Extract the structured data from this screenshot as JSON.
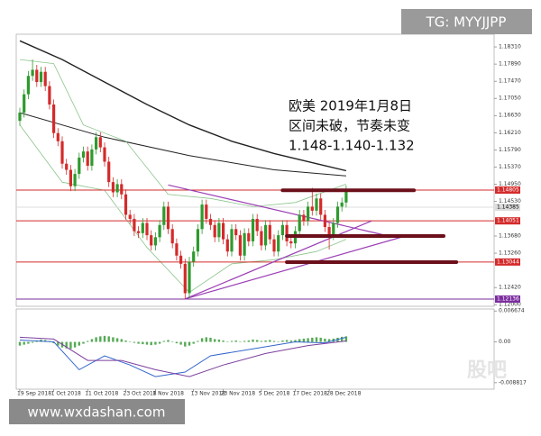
{
  "badge": "TG: MYYJJPP",
  "footer": "www.wxdashan.com",
  "watermark": "股吧",
  "chart_data": {
    "type": "candlestick",
    "categories": [
      "19 Sep 2018",
      null,
      null,
      null,
      null,
      null,
      null,
      null,
      "1 Oct 2018",
      null,
      null,
      null,
      null,
      null,
      null,
      null,
      "11 Oct 2018",
      null,
      null,
      null,
      null,
      null,
      null,
      null,
      null,
      "23 Oct 2018",
      null,
      null,
      null,
      null,
      null,
      null,
      "1 Nov 2018",
      null,
      null,
      null,
      null,
      null,
      null,
      null,
      null,
      "13 Nov 2018",
      null,
      null,
      null,
      null,
      null,
      null,
      "23 Nov 2018",
      null,
      null,
      null,
      null,
      null,
      null,
      null,
      null,
      "5 Dec 2018",
      null,
      null,
      null,
      null,
      null,
      null,
      null,
      "17 Dec 2018",
      null,
      null,
      null,
      null,
      null,
      null,
      null,
      "28 Dec 2018",
      null,
      null,
      null,
      null
    ],
    "open": [
      1.165,
      1.167,
      1.1715,
      1.176,
      1.1775,
      1.1745,
      1.177,
      1.1735,
      1.169,
      1.162,
      1.16,
      1.1545,
      1.153,
      1.149,
      1.152,
      1.156,
      1.1575,
      1.154,
      1.158,
      1.161,
      1.1585,
      1.155,
      1.15,
      1.1475,
      1.1495,
      1.147,
      1.142,
      1.141,
      1.138,
      1.1375,
      1.14,
      1.137,
      1.1345,
      1.1365,
      1.1395,
      1.144,
      1.1385,
      1.135,
      1.132,
      1.13,
      1.1228,
      1.1305,
      1.133,
      1.1385,
      1.1445,
      1.141,
      1.1395,
      1.1365,
      1.14,
      1.136,
      1.133,
      1.1385,
      1.137,
      1.132,
      1.1375,
      1.1355,
      1.141,
      1.138,
      1.1345,
      1.1395,
      1.136,
      1.133,
      1.137,
      1.1395,
      1.1355,
      1.135,
      1.138,
      1.142,
      1.1405,
      1.144,
      1.143,
      1.146,
      1.142,
      1.139,
      1.137,
      1.14,
      1.144,
      1.145
    ],
    "high": [
      1.1682,
      1.1727,
      1.1772,
      1.18,
      1.1787,
      1.1782,
      1.1782,
      1.1747,
      1.1702,
      1.1632,
      1.1612,
      1.1557,
      1.1542,
      1.1532,
      1.1572,
      1.1587,
      1.1587,
      1.1592,
      1.1622,
      1.1622,
      1.1597,
      1.1562,
      1.1512,
      1.1507,
      1.1507,
      1.1482,
      1.1432,
      1.1422,
      1.1392,
      1.1412,
      1.1412,
      1.1382,
      1.1377,
      1.1407,
      1.1452,
      1.1452,
      1.1397,
      1.1362,
      1.1332,
      1.1312,
      1.1317,
      1.1342,
      1.1397,
      1.1457,
      1.1457,
      1.1422,
      1.1407,
      1.1412,
      1.1412,
      1.1372,
      1.1397,
      1.1397,
      1.1382,
      1.1387,
      1.1387,
      1.1422,
      1.1422,
      1.1392,
      1.1407,
      1.1407,
      1.1372,
      1.1382,
      1.1407,
      1.1407,
      1.1367,
      1.1392,
      1.1432,
      1.1432,
      1.1452,
      1.1486,
      1.1472,
      1.1472,
      1.1432,
      1.1402,
      1.1412,
      1.1452,
      1.1462,
      1.1492
    ],
    "low": [
      1.1638,
      1.1658,
      1.1703,
      1.1748,
      1.1733,
      1.1733,
      1.1723,
      1.1678,
      1.1608,
      1.1588,
      1.1533,
      1.1518,
      1.1478,
      1.1478,
      1.1508,
      1.1548,
      1.1528,
      1.1528,
      1.1568,
      1.1573,
      1.1538,
      1.1488,
      1.1463,
      1.1463,
      1.1458,
      1.1408,
      1.1398,
      1.1368,
      1.1363,
      1.1363,
      1.1358,
      1.1333,
      1.1333,
      1.1353,
      1.1383,
      1.1373,
      1.1338,
      1.1308,
      1.1288,
      1.1214,
      1.1216,
      1.1293,
      1.1318,
      1.1373,
      1.1398,
      1.1383,
      1.1353,
      1.1353,
      1.1348,
      1.1318,
      1.1318,
      1.1358,
      1.1308,
      1.1308,
      1.1343,
      1.1343,
      1.1368,
      1.1333,
      1.1333,
      1.1348,
      1.1318,
      1.1318,
      1.1358,
      1.1343,
      1.1338,
      1.1338,
      1.1368,
      1.1393,
      1.1393,
      1.1418,
      1.1418,
      1.1408,
      1.1378,
      1.1335,
      1.1358,
      1.1388,
      1.1428,
      1.1438
    ],
    "close": [
      1.167,
      1.1715,
      1.176,
      1.1775,
      1.1745,
      1.177,
      1.1735,
      1.169,
      1.162,
      1.16,
      1.1545,
      1.153,
      1.149,
      1.152,
      1.156,
      1.1575,
      1.154,
      1.158,
      1.161,
      1.1585,
      1.155,
      1.15,
      1.1475,
      1.1495,
      1.147,
      1.142,
      1.141,
      1.138,
      1.1375,
      1.14,
      1.137,
      1.1345,
      1.1365,
      1.1395,
      1.144,
      1.1385,
      1.135,
      1.132,
      1.13,
      1.1228,
      1.1305,
      1.133,
      1.1385,
      1.1445,
      1.141,
      1.1395,
      1.1365,
      1.14,
      1.136,
      1.133,
      1.1385,
      1.137,
      1.132,
      1.1375,
      1.1355,
      1.141,
      1.138,
      1.1345,
      1.1395,
      1.136,
      1.133,
      1.137,
      1.1395,
      1.1355,
      1.135,
      1.138,
      1.142,
      1.1405,
      1.144,
      1.143,
      1.146,
      1.142,
      1.139,
      1.137,
      1.14,
      1.144,
      1.145,
      1.148
    ],
    "up_color": "#2e9a2e",
    "down_color": "#d42a2a",
    "ylim": [
      1.1196,
      1.1862
    ],
    "yticks": [
      {
        "value": 1.1831,
        "label": "1.18310"
      },
      {
        "value": 1.1789,
        "label": "1.17890"
      },
      {
        "value": 1.1747,
        "label": "1.17470"
      },
      {
        "value": 1.1705,
        "label": "1.17050"
      },
      {
        "value": 1.1663,
        "label": "1.16630"
      },
      {
        "value": 1.1621,
        "label": "1.16210"
      },
      {
        "value": 1.1579,
        "label": "1.15790"
      },
      {
        "value": 1.1537,
        "label": "1.15370"
      },
      {
        "value": 1.1495,
        "label": "1.14950"
      },
      {
        "value": 1.1453,
        "label": "1.14530"
      },
      {
        "value": 1.1368,
        "label": "1.13680"
      },
      {
        "value": 1.1326,
        "label": "1.13260"
      },
      {
        "value": 1.1242,
        "label": "1.12420"
      },
      {
        "value": 1.12,
        "label": "1.12000"
      }
    ],
    "overlays": [
      {
        "color": "#222222",
        "width": 1.4,
        "points": [
          [
            0,
            1.1846
          ],
          [
            10,
            1.18
          ],
          [
            20,
            1.1745
          ],
          [
            30,
            1.169
          ],
          [
            40,
            1.164
          ],
          [
            50,
            1.16
          ],
          [
            60,
            1.157
          ],
          [
            70,
            1.1545
          ],
          [
            77,
            1.1528
          ]
        ]
      },
      {
        "color": "#222222",
        "width": 1,
        "points": [
          [
            0,
            1.167
          ],
          [
            20,
            1.161
          ],
          [
            40,
            1.1565
          ],
          [
            60,
            1.153
          ],
          [
            77,
            1.1515
          ]
        ]
      },
      {
        "color": "#8cc48c",
        "width": 0.8,
        "points": [
          [
            0,
            1.18
          ],
          [
            8,
            1.179
          ],
          [
            15,
            1.164
          ],
          [
            25,
            1.16
          ],
          [
            35,
            1.147
          ],
          [
            45,
            1.146
          ],
          [
            55,
            1.144
          ],
          [
            65,
            1.145
          ],
          [
            77,
            1.1495
          ]
        ]
      },
      {
        "color": "#8cc48c",
        "width": 0.8,
        "points": [
          [
            0,
            1.164
          ],
          [
            10,
            1.15
          ],
          [
            20,
            1.148
          ],
          [
            30,
            1.134
          ],
          [
            40,
            1.123
          ],
          [
            50,
            1.13
          ],
          [
            60,
            1.131
          ],
          [
            70,
            1.133
          ],
          [
            77,
            1.136
          ]
        ]
      }
    ],
    "levels": [
      {
        "value": 1.14805,
        "label": "1.14805",
        "color": "#d42a2a",
        "text_color": "#ffffff"
      },
      {
        "value": 1.14385,
        "label": "1.14385",
        "color": "#dddddd",
        "text_color": "#000000"
      },
      {
        "value": 1.14051,
        "label": "1.14051",
        "color": "#d42a2a",
        "text_color": "#ffffff"
      },
      {
        "value": 1.13044,
        "label": "1.13044",
        "color": "#d42a2a",
        "text_color": "#ffffff"
      },
      {
        "value": 1.12136,
        "label": "1.12136",
        "color": "#7b2d9e",
        "text_color": "#ffffff"
      }
    ],
    "trendlines": [
      {
        "color": "#9b3fb5",
        "start": [
          39,
          1.1214
        ],
        "end": [
          83,
          1.1405
        ]
      },
      {
        "color": "#9b3fb5",
        "start": [
          39,
          1.1214
        ],
        "end": [
          91,
          1.1368
        ]
      },
      {
        "color": "#9b3fb5",
        "start": [
          35,
          1.1493
        ],
        "end": [
          87,
          1.1368
        ]
      }
    ],
    "markers": [
      {
        "color": "#6b0f1a",
        "value": 1.148,
        "from": 62,
        "to": 93
      },
      {
        "color": "#6b0f1a",
        "value": 1.1368,
        "from": 63,
        "to": 100
      },
      {
        "color": "#6b0f1a",
        "value": 1.1304,
        "from": 63,
        "to": 103
      }
    ],
    "annotation": [
      "欧美 2019年1月8日",
      "区间未破，节奏未变",
      "1.148-1.140-1.132"
    ],
    "macd": {
      "ylim": [
        -0.0102,
        0.0071
      ],
      "yticks": [
        0.006674,
        {
          "value": 0,
          "label": "0.00"
        },
        -0.008817
      ],
      "histogram_color": "#55aa55",
      "histogram": [
        -0.0008,
        -0.0006,
        -0.0004,
        -0.0002,
        0.0003,
        0.0005,
        0.0004,
        0.0002,
        -0.0003,
        -0.0008,
        -0.0012,
        -0.0014,
        -0.0015,
        -0.0012,
        -0.0008,
        -0.0004,
        0.0002,
        0.0006,
        0.001,
        0.0012,
        0.0013,
        0.0012,
        0.001,
        0.0008,
        0.0006,
        0.0003,
        0.0001,
        -0.0002,
        -0.0004,
        -0.0005,
        -0.0006,
        -0.0007,
        -0.0006,
        -0.0004,
        0.0002,
        0.0004,
        0.0001,
        -0.0003,
        -0.0006,
        -0.001,
        -0.0008,
        -0.0004,
        0.0002,
        0.0008,
        0.001,
        0.0009,
        0.0006,
        0.0005,
        0.0003,
        0.0001,
        0.0002,
        0.0003,
        0.0001,
        0.0002,
        0.0003,
        0.0005,
        0.0004,
        0.0002,
        0.0003,
        0.0004,
        0.0002,
        0.0001,
        0.0003,
        0.0004,
        0.0003,
        0.0004,
        0.0006,
        0.0007,
        0.0008,
        0.0009,
        0.001,
        0.0009,
        0.0007,
        0.0006,
        0.0007,
        0.0009,
        0.0011,
        0.0012
      ],
      "lines": [
        {
          "color": "#3366cc",
          "points": [
            [
              0,
              0.0004
            ],
            [
              8,
              0.0
            ],
            [
              14,
              -0.006
            ],
            [
              20,
              -0.003
            ],
            [
              26,
              -0.005
            ],
            [
              32,
              -0.0075
            ],
            [
              39,
              -0.0065
            ],
            [
              45,
              -0.003
            ],
            [
              55,
              -0.0015
            ],
            [
              65,
              0.0
            ],
            [
              72,
              -0.0002
            ],
            [
              77,
              0.001
            ]
          ]
        },
        {
          "color": "#7b3f9e",
          "points": [
            [
              0,
              0.001
            ],
            [
              8,
              0.0006
            ],
            [
              16,
              -0.004
            ],
            [
              24,
              -0.004
            ],
            [
              32,
              -0.006
            ],
            [
              40,
              -0.0075
            ],
            [
              48,
              -0.005
            ],
            [
              58,
              -0.0025
            ],
            [
              68,
              -0.0008
            ],
            [
              77,
              0.0002
            ]
          ]
        }
      ]
    }
  }
}
